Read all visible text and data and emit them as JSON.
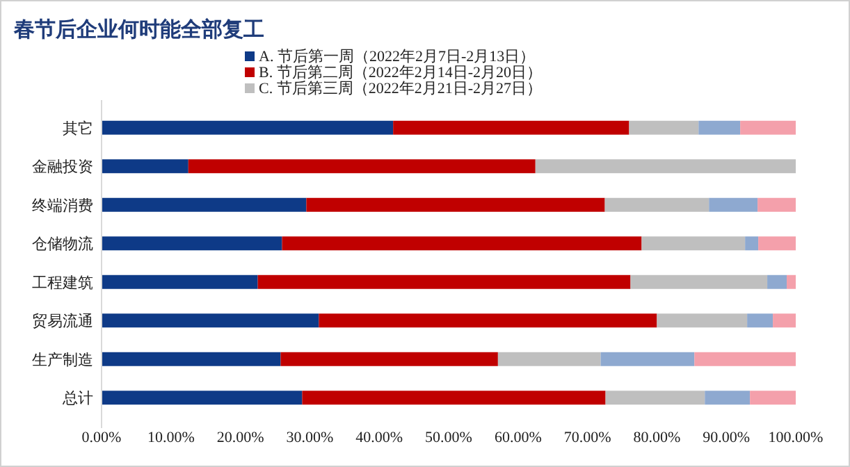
{
  "chart_data": {
    "type": "bar",
    "orientation": "horizontal",
    "stacked": true,
    "title": "春节后企业何时能全部复工",
    "categories": [
      "其它",
      "金融投资",
      "终端消费",
      "仓储物流",
      "工程建筑",
      "贸易流通",
      "生产制造",
      "总计"
    ],
    "series": [
      {
        "name": "A. 节后第一周（2022年2月7日-2月13日）",
        "color": "#0e3a87",
        "values": [
          42,
          12.5,
          29.5,
          26,
          22.5,
          31.3,
          25.8,
          28.9
        ]
      },
      {
        "name": "B. 节后第二周（2022年2月14日-2月20日）",
        "color": "#c00000",
        "values": [
          34,
          50,
          43,
          51.8,
          53.7,
          48.7,
          31.3,
          43.7
        ]
      },
      {
        "name": "C. 节后第三周（2022年2月21日-2月27日）",
        "color": "#bfbfbf",
        "values": [
          10,
          37.5,
          15,
          14.9,
          19.7,
          13,
          14.8,
          14.3
        ]
      },
      {
        "color": "#8ea9d0",
        "values": [
          6,
          null,
          7,
          1.9,
          2.8,
          3.7,
          13.5,
          6.5
        ]
      },
      {
        "color": "#f4a0ab",
        "values": [
          8,
          null,
          5.5,
          5.4,
          1.3,
          3.3,
          14.6,
          6.6
        ]
      }
    ],
    "xlim": [
      0,
      100
    ],
    "xticks": [
      {
        "value": 0,
        "label": "0.00%"
      },
      {
        "value": 10,
        "label": "10.00%"
      },
      {
        "value": 20,
        "label": "20.00%"
      },
      {
        "value": 30,
        "label": "30.00%"
      },
      {
        "value": 40,
        "label": "40.00%"
      },
      {
        "value": 50,
        "label": "50.00%"
      },
      {
        "value": 60,
        "label": "60.00%"
      },
      {
        "value": 70,
        "label": "70.00%"
      },
      {
        "value": 80,
        "label": "80.00%"
      },
      {
        "value": 90,
        "label": "90.00%"
      },
      {
        "value": 100,
        "label": "100.00%"
      }
    ],
    "grid": false,
    "legend": "top"
  }
}
